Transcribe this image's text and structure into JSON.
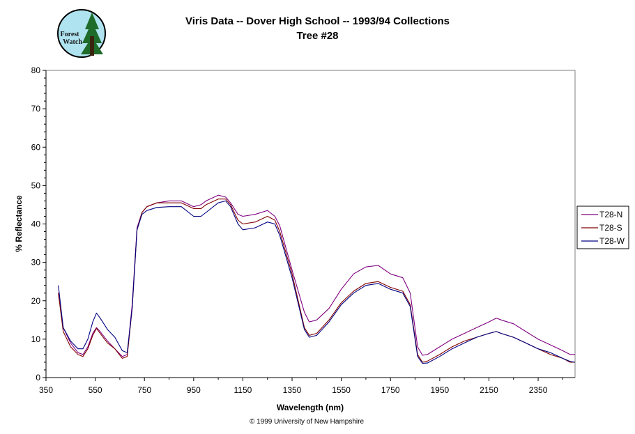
{
  "logo": {
    "line1": "Forest",
    "line2": "Watch",
    "fill_color": "#aee3ef",
    "tree_color": "#1e6b2a"
  },
  "chart_data": {
    "type": "line",
    "title": "Viris Data -- Dover High School -- 1993/94 Collections",
    "subtitle": "Tree #28",
    "xlabel": "Wavelength (nm)",
    "ylabel": "% Reflectance",
    "xlim": [
      350,
      2500
    ],
    "ylim": [
      0,
      80
    ],
    "xticks": [
      350,
      550,
      750,
      950,
      1150,
      1350,
      1550,
      1750,
      1950,
      2150,
      2350
    ],
    "yticks": [
      0,
      10,
      20,
      30,
      40,
      50,
      60,
      70,
      80
    ],
    "grid": false,
    "legend_position": "right",
    "series": [
      {
        "name": "T28-N",
        "color": "#800080",
        "x": [
          400,
          420,
          450,
          480,
          500,
          520,
          540,
          555,
          570,
          600,
          630,
          660,
          680,
          700,
          720,
          740,
          760,
          800,
          850,
          900,
          950,
          980,
          1000,
          1050,
          1080,
          1100,
          1130,
          1150,
          1200,
          1250,
          1280,
          1300,
          1350,
          1400,
          1420,
          1450,
          1500,
          1550,
          1600,
          1650,
          1700,
          1750,
          1800,
          1830,
          1860,
          1880,
          1900,
          1950,
          2000,
          2050,
          2100,
          2150,
          2180,
          2200,
          2250,
          2300,
          2350,
          2400,
          2450,
          2480,
          2500
        ],
        "y": [
          22,
          13,
          9,
          6.5,
          6,
          8,
          11.5,
          13,
          12,
          9.5,
          7.5,
          5.5,
          6,
          19,
          39,
          43,
          44.5,
          45.5,
          46,
          46,
          44.5,
          45,
          46,
          47.5,
          47,
          45.5,
          42.5,
          42,
          42.5,
          43.5,
          42,
          39.5,
          28,
          17,
          14.5,
          15,
          18,
          23,
          27,
          28.8,
          29.2,
          27,
          26,
          22,
          8,
          5.8,
          6,
          8,
          10,
          11.5,
          13,
          14.5,
          15.5,
          15,
          14,
          12,
          10,
          8.5,
          7,
          6,
          6
        ]
      },
      {
        "name": "T28-S",
        "color": "#800000",
        "x": [
          400,
          420,
          450,
          480,
          500,
          520,
          540,
          555,
          570,
          600,
          630,
          660,
          680,
          700,
          720,
          740,
          760,
          800,
          850,
          900,
          950,
          980,
          1000,
          1050,
          1080,
          1100,
          1130,
          1150,
          1200,
          1250,
          1280,
          1300,
          1350,
          1400,
          1420,
          1450,
          1500,
          1550,
          1600,
          1650,
          1700,
          1750,
          1800,
          1830,
          1860,
          1880,
          1900,
          1950,
          2000,
          2050,
          2100,
          2150,
          2180,
          2200,
          2250,
          2300,
          2350,
          2400,
          2450,
          2480,
          2500
        ],
        "y": [
          22,
          12,
          8,
          6,
          5.5,
          7.5,
          11,
          12.8,
          11.5,
          9,
          7.5,
          5,
          5.5,
          18,
          38.5,
          43,
          44.5,
          45.5,
          45.5,
          45.5,
          44,
          44,
          45,
          46.5,
          46.5,
          45,
          41,
          40,
          40.5,
          42,
          41,
          38,
          27,
          13,
          11,
          11.5,
          15,
          19.5,
          22.5,
          24.5,
          25,
          23.5,
          22.5,
          19,
          6,
          4,
          4.3,
          6,
          8,
          9.5,
          10.5,
          11.5,
          12,
          11.5,
          10.5,
          9,
          7.5,
          6,
          5,
          4,
          4
        ]
      },
      {
        "name": "T28-W",
        "color": "#000080",
        "x": [
          400,
          420,
          450,
          480,
          500,
          520,
          540,
          555,
          570,
          600,
          630,
          660,
          680,
          700,
          720,
          740,
          760,
          800,
          850,
          900,
          950,
          980,
          1000,
          1050,
          1080,
          1100,
          1130,
          1150,
          1200,
          1250,
          1280,
          1300,
          1350,
          1400,
          1420,
          1450,
          1500,
          1550,
          1600,
          1650,
          1700,
          1750,
          1800,
          1830,
          1860,
          1880,
          1900,
          1950,
          2000,
          2050,
          2100,
          2150,
          2180,
          2200,
          2250,
          2300,
          2350,
          2400,
          2450,
          2480,
          2500
        ],
        "y": [
          24,
          13,
          9.5,
          7.5,
          7.5,
          10,
          14.5,
          16.8,
          15.5,
          12.5,
          10.5,
          7,
          6.5,
          18,
          38.5,
          42.5,
          43.5,
          44.3,
          44.5,
          44.5,
          42,
          42,
          43,
          45.5,
          46,
          44.5,
          40,
          38.5,
          39,
          40.5,
          40,
          37,
          26,
          12.5,
          10.5,
          11,
          14.5,
          19,
          22,
          24,
          24.5,
          23,
          22,
          18.5,
          5.5,
          3.7,
          3.8,
          5.5,
          7.5,
          9,
          10.5,
          11.5,
          12,
          11.5,
          10.5,
          9,
          7.5,
          6.5,
          5,
          4.2,
          4
        ]
      }
    ]
  },
  "footer": {
    "copyright": "© 1999 University of New Hampshire"
  }
}
